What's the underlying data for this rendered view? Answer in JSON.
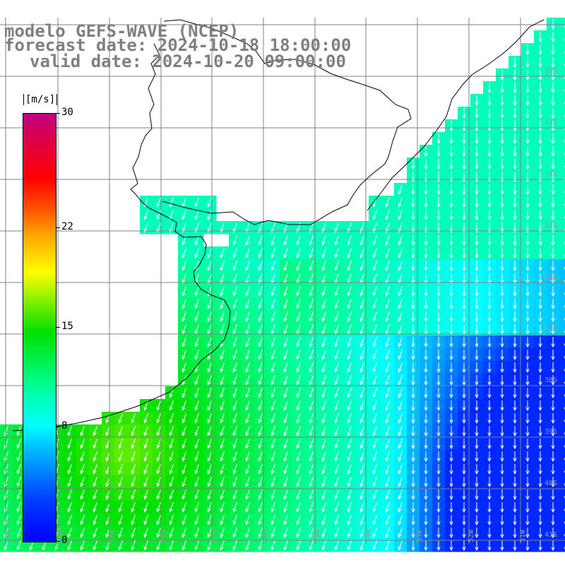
{
  "title": {
    "model": "modelo GEFS-WAVE (NCEP)",
    "forecast": "forecast date: 2024-10-18 18:00:00",
    "valid": "valid date: 2024-10-20 09:00:00"
  },
  "colorbar": {
    "unit": "[m/s]",
    "ticks": [
      "30",
      "22",
      "15",
      "8",
      "0"
    ],
    "tick_values": [
      30,
      22,
      15,
      8,
      0
    ],
    "min": 0,
    "max": 30
  },
  "map": {
    "variable": "wind speed and direction",
    "lon_labels": [
      "61W",
      "60W",
      "59W",
      "58W",
      "57W",
      "56W",
      "55W",
      "54W",
      "53W",
      "52W",
      "51W"
    ],
    "lat_labels": [
      "32S",
      "33S",
      "34S",
      "35S",
      "36S",
      "37S",
      "38S",
      "39S",
      "40S",
      "41S"
    ],
    "colors": {
      "land": "#ffffff",
      "coast": "#000000",
      "grid": "#808080",
      "arrow": "#ffffff",
      "title": "#7f7f7f"
    }
  }
}
